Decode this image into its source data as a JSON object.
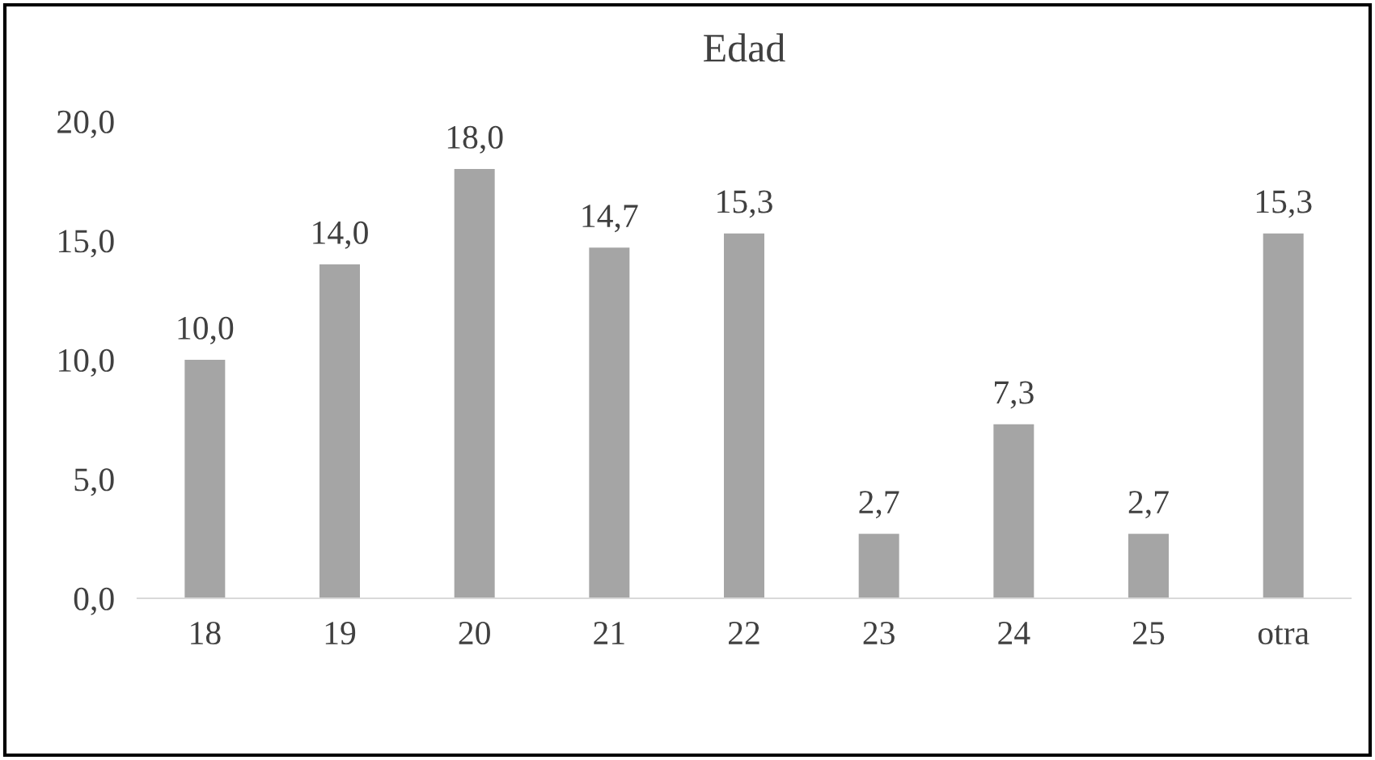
{
  "chart_data": {
    "type": "bar",
    "title": "Edad",
    "categories": [
      "18",
      "19",
      "20",
      "21",
      "22",
      "23",
      "24",
      "25",
      "otra"
    ],
    "values": [
      10.0,
      14.0,
      18.0,
      14.7,
      15.3,
      2.7,
      7.3,
      2.7,
      15.3
    ],
    "value_labels": [
      "10,0",
      "14,0",
      "18,0",
      "14,7",
      "15,3",
      "2,7",
      "7,3",
      "2,7",
      "15,3"
    ],
    "color": "#a5a5a5",
    "ylim": [
      0,
      20
    ],
    "yticks": [
      {
        "value": 0,
        "label": "0,0"
      },
      {
        "value": 5,
        "label": "5,0"
      },
      {
        "value": 10,
        "label": "10,0"
      },
      {
        "value": 15,
        "label": "15,0"
      },
      {
        "value": 20,
        "label": "20,0"
      }
    ],
    "grid": false,
    "legend": false
  }
}
